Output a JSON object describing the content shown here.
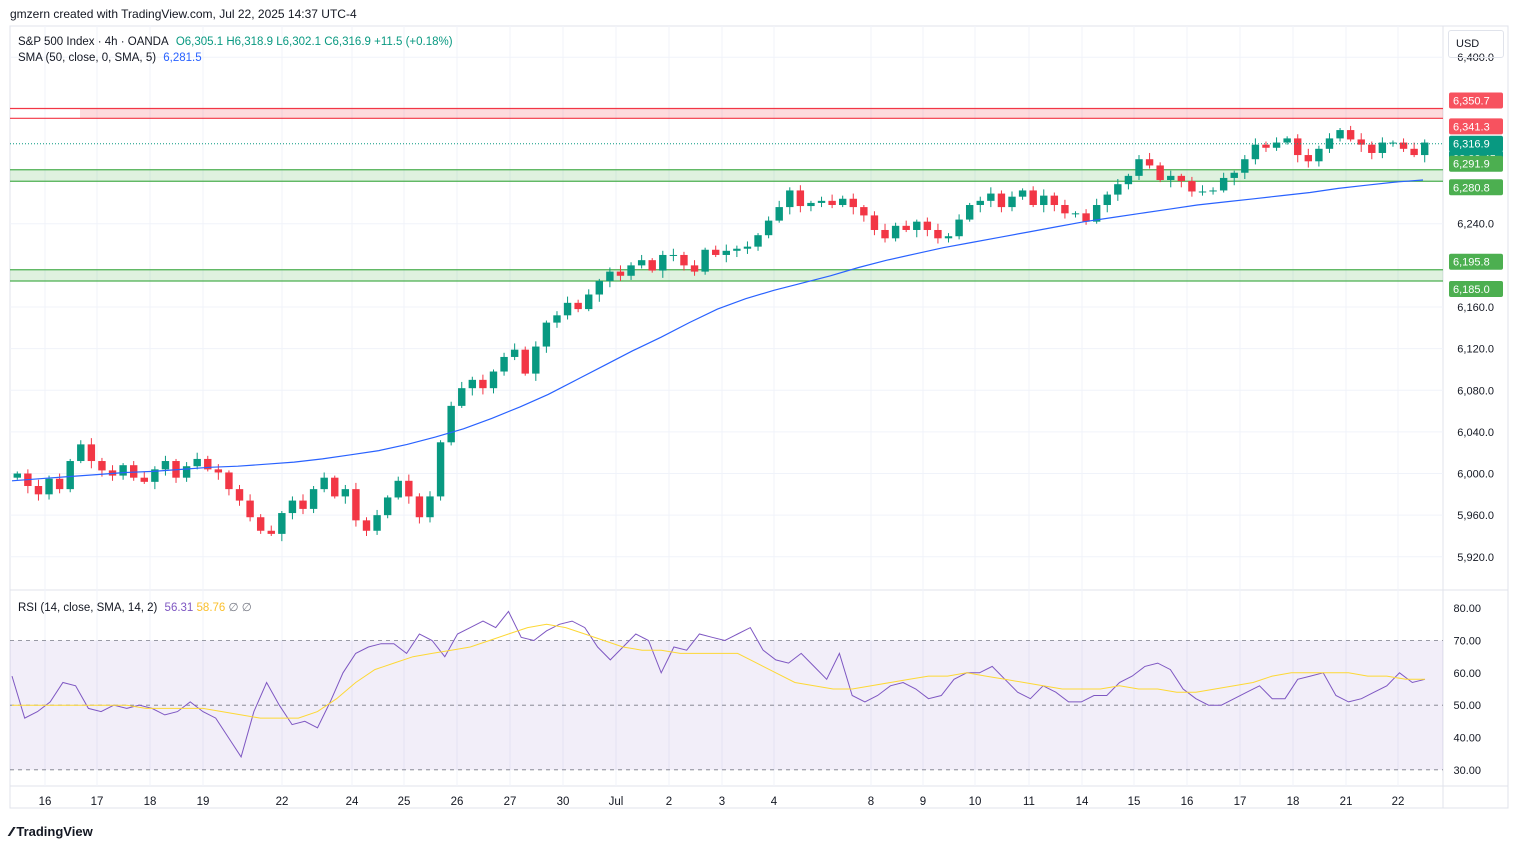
{
  "header": {
    "attribution": "gmzern created with TradingView.com, Jul 22, 2025 14:37 UTC-4"
  },
  "price_legend": {
    "symbol": "S&P 500 Index · 4h · OANDA",
    "open": "O6,305.1",
    "high": "H6,318.9",
    "low": "L6,302.1",
    "close": "C6,316.9",
    "change": "+11.5 (+0.18%)",
    "sma_label": "SMA (50, close, 0, SMA, 5)",
    "sma_value": "6,281.5"
  },
  "rsi_legend": {
    "label": "RSI (14, close, SMA, 14, 2)",
    "rsi": "56.31",
    "sma": "58.76",
    "extra1": "∅",
    "extra2": "∅"
  },
  "currency": "USD",
  "logo": "TradingView",
  "colors": {
    "up": "#089981",
    "down": "#f23645",
    "sma": "#2962ff",
    "rsi": "#7e57c2",
    "rsi_sma": "#fdd835",
    "zone_green": "#4caf50",
    "zone_red": "#f23645"
  },
  "chart_data": [
    {
      "type": "candlestick",
      "title": "S&P 500 Index · 4h · OANDA",
      "ylim": [
        5890,
        6430
      ],
      "y_ticks": [
        "6,400.0",
        "6,240.0",
        "6,160.0",
        "6,120.0",
        "6,080.0",
        "6,040.0",
        "6,000.0",
        "5,960.0",
        "5,920.0"
      ],
      "y_tick_values": [
        6400,
        6240,
        6160,
        6120,
        6080,
        6040,
        6000,
        5960,
        5920
      ],
      "x_ticks": [
        "16",
        "17",
        "18",
        "19",
        "22",
        "24",
        "25",
        "26",
        "27",
        "30",
        "Jul",
        "2",
        "3",
        "4",
        "8",
        "9",
        "10",
        "11",
        "14",
        "15",
        "16",
        "17",
        "18",
        "21",
        "22"
      ],
      "zones": [
        {
          "name": "resistance",
          "low": 6341.3,
          "high": 6350.7,
          "color": "red"
        },
        {
          "name": "support-1",
          "low": 6280.8,
          "high": 6291.9,
          "color": "green"
        },
        {
          "name": "support-2",
          "low": 6185.0,
          "high": 6195.8,
          "color": "green"
        }
      ],
      "price_labels": [
        {
          "text": "6,350.7",
          "value": 6350.7,
          "kind": "red"
        },
        {
          "text": "6,341.3",
          "value": 6341.3,
          "kind": "red"
        },
        {
          "text": "6,316.9",
          "value": 6316.9,
          "kind": "last"
        },
        {
          "text": "02:22:45",
          "value": 6316.9,
          "kind": "timer"
        },
        {
          "text": "6,291.9",
          "value": 6291.9,
          "kind": "green"
        },
        {
          "text": "6,280.8",
          "value": 6280.8,
          "kind": "green"
        },
        {
          "text": "6,195.8",
          "value": 6195.8,
          "kind": "green"
        },
        {
          "text": "6,185.0",
          "value": 6185.0,
          "kind": "green"
        }
      ],
      "last_price": 6316.9,
      "close_path": [
        6000,
        5988,
        5980,
        5995,
        5985,
        6012,
        6028,
        6012,
        6003,
        5998,
        6008,
        5996,
        5992,
        6004,
        6012,
        5996,
        6007,
        6014,
        6004,
        6001,
        5985,
        5974,
        5958,
        5945,
        5942,
        5962,
        5974,
        5966,
        5985,
        5996,
        5978,
        5985,
        5955,
        5945,
        5960,
        5977,
        5993,
        5978,
        5958,
        5978,
        6030,
        6065,
        6082,
        6090,
        6082,
        6098,
        6112,
        6119,
        6096,
        6122,
        6145,
        6152,
        6164,
        6158,
        6172,
        6185,
        6194,
        6190,
        6200,
        6205,
        6195,
        6210,
        6210,
        6200,
        6194,
        6215,
        6210,
        6214,
        6216,
        6218,
        6229,
        6243,
        6256,
        6272,
        6257,
        6260,
        6262,
        6258,
        6264,
        6256,
        6248,
        6234,
        6226,
        6238,
        6234,
        6242,
        6234,
        6226,
        6228,
        6244,
        6258,
        6262,
        6269,
        6256,
        6266,
        6272,
        6258,
        6267,
        6258,
        6250,
        6250,
        6242,
        6258,
        6268,
        6278,
        6286,
        6302,
        6296,
        6282,
        6286,
        6281,
        6271,
        6271,
        6272,
        6284,
        6289,
        6302,
        6316,
        6313,
        6318,
        6322,
        6306,
        6300,
        6312,
        6322,
        6330,
        6321,
        6316,
        6308,
        6318,
        6318,
        6312,
        6306,
        6318
      ],
      "sma_start": 5993,
      "sma_path": [
        5993,
        5995,
        5997,
        5999,
        6001,
        6002,
        6004,
        6006,
        6007,
        6009,
        6011,
        6014,
        6018,
        6022,
        6028,
        6035,
        6043,
        6053,
        6064,
        6076,
        6090,
        6104,
        6118,
        6131,
        6145,
        6158,
        6168,
        6176,
        6183,
        6190,
        6198,
        6205,
        6211,
        6217,
        6222,
        6227,
        6232,
        6237,
        6242,
        6246,
        6250,
        6254,
        6258,
        6261,
        6264,
        6267,
        6270,
        6274,
        6277,
        6280,
        6282
      ]
    },
    {
      "type": "line",
      "title": "RSI (14, close, SMA, 14, 2)",
      "ylim": [
        25,
        85
      ],
      "y_ticks": [
        "80.00",
        "70.00",
        "60.00",
        "50.00",
        "40.00",
        "30.00"
      ],
      "y_tick_values": [
        80,
        70,
        60,
        50,
        40,
        30
      ],
      "bands": {
        "upper": 70,
        "middle": 50,
        "lower": 30
      },
      "series": [
        {
          "name": "RSI",
          "values": [
            59,
            46,
            48,
            51,
            57,
            56,
            49,
            48,
            50,
            49,
            50,
            49,
            47,
            48,
            51,
            48,
            46,
            40,
            34,
            48,
            57,
            50,
            44,
            45,
            43,
            51,
            60,
            66,
            68,
            69,
            69,
            66,
            72,
            70,
            65,
            72,
            74,
            76,
            74,
            79,
            71,
            70,
            73,
            75,
            76,
            74,
            68,
            64,
            68,
            72,
            70,
            60,
            68,
            67,
            72,
            71,
            70,
            72,
            74,
            67,
            64,
            63,
            66,
            62,
            58,
            66,
            53,
            51,
            53,
            56,
            57,
            55,
            52,
            53,
            58,
            60,
            60,
            62,
            58,
            54,
            52,
            56,
            54,
            51,
            51,
            53,
            53,
            57,
            59,
            62,
            63,
            61,
            55,
            52,
            50,
            50,
            52,
            54,
            56,
            52,
            52,
            58,
            59,
            60,
            53,
            51,
            52,
            54,
            56,
            60,
            57,
            58
          ]
        },
        {
          "name": "RSI SMA",
          "values": [
            50,
            50,
            50,
            50,
            50,
            50,
            50,
            49,
            49,
            49,
            49,
            48,
            47,
            46,
            46,
            46,
            48,
            52,
            57,
            61,
            63,
            65,
            66,
            67,
            68,
            70,
            72,
            74,
            75,
            74,
            72,
            70,
            68,
            67,
            67,
            66,
            66,
            66,
            66,
            63,
            60,
            57,
            56,
            55,
            55,
            56,
            57,
            58,
            59,
            59,
            60,
            59,
            58,
            57,
            56,
            55,
            55,
            55,
            56,
            55,
            55,
            54,
            54,
            55,
            56,
            57,
            59,
            60,
            60,
            60,
            60,
            59,
            59,
            58,
            58
          ]
        }
      ],
      "rsi_last": 56.31,
      "sma_last": 58.76
    }
  ]
}
